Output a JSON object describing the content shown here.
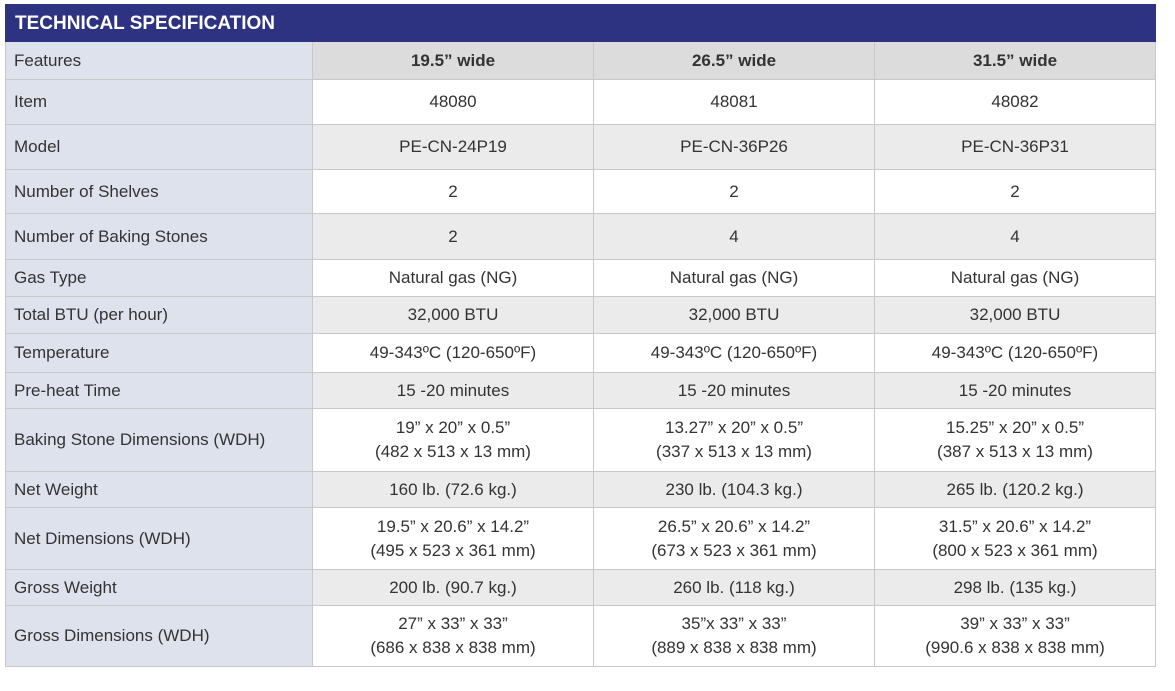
{
  "title": "TECHNICAL SPECIFICATION",
  "table": {
    "header": [
      "Features",
      "19.5” wide",
      "26.5” wide",
      "31.5” wide"
    ],
    "rows": [
      [
        [
          "Item"
        ],
        [
          "48080"
        ],
        [
          "48081"
        ],
        [
          "48082"
        ]
      ],
      [
        [
          "Model"
        ],
        [
          "PE-CN-24P19"
        ],
        [
          "PE-CN-36P26"
        ],
        [
          "PE-CN-36P31"
        ]
      ],
      [
        [
          "Number of Shelves"
        ],
        [
          "2"
        ],
        [
          "2"
        ],
        [
          "2"
        ]
      ],
      [
        [
          "Number of Baking Stones"
        ],
        [
          "2"
        ],
        [
          "4"
        ],
        [
          "4"
        ]
      ],
      [
        [
          "Gas Type"
        ],
        [
          "Natural gas (NG)"
        ],
        [
          "Natural gas (NG)"
        ],
        [
          "Natural gas (NG)"
        ]
      ],
      [
        [
          "Total BTU (per hour)"
        ],
        [
          "32,000 BTU"
        ],
        [
          "32,000 BTU"
        ],
        [
          "32,000 BTU"
        ]
      ],
      [
        [
          "Temperature"
        ],
        [
          "49-343ºC (120-650ºF)"
        ],
        [
          "49-343ºC (120-650ºF)"
        ],
        [
          "49-343ºC (120-650ºF)"
        ]
      ],
      [
        [
          "Pre-heat Time"
        ],
        [
          "15 -20 minutes"
        ],
        [
          "15 -20 minutes"
        ],
        [
          "15 -20 minutes"
        ]
      ],
      [
        [
          "Baking Stone Dimensions (WDH)"
        ],
        [
          "19” x 20” x 0.5”",
          "(482 x 513 x 13 mm)"
        ],
        [
          "13.27” x 20” x 0.5”",
          "(337 x 513 x 13 mm)"
        ],
        [
          "15.25” x 20” x 0.5”",
          "(387 x 513 x 13 mm)"
        ]
      ],
      [
        [
          "Net Weight"
        ],
        [
          "160 lb. (72.6 kg.)"
        ],
        [
          "230 lb. (104.3 kg.)"
        ],
        [
          "265 lb. (120.2 kg.)"
        ]
      ],
      [
        [
          "Net Dimensions (WDH)"
        ],
        [
          "19.5” x 20.6” x 14.2”",
          "(495 x 523 x 361 mm)"
        ],
        [
          "26.5”  x 20.6”  x 14.2”",
          "(673 x 523 x 361 mm)"
        ],
        [
          "31.5” x 20.6” x 14.2”",
          "(800 x 523 x 361 mm)"
        ]
      ],
      [
        [
          "Gross Weight"
        ],
        [
          "200 lb. (90.7 kg.)"
        ],
        [
          "260 lb. (118 kg.)"
        ],
        [
          "298 lb. (135 kg.)"
        ]
      ],
      [
        [
          "Gross Dimensions (WDH)"
        ],
        [
          "27” x 33” x 33”",
          "(686 x 838 x 838 mm)"
        ],
        [
          "35”x 33” x 33”",
          "(889 x 838 x 838 mm)"
        ],
        [
          "39” x 33” x 33”",
          "(990.6 x 838 x 838 mm)"
        ]
      ]
    ]
  }
}
